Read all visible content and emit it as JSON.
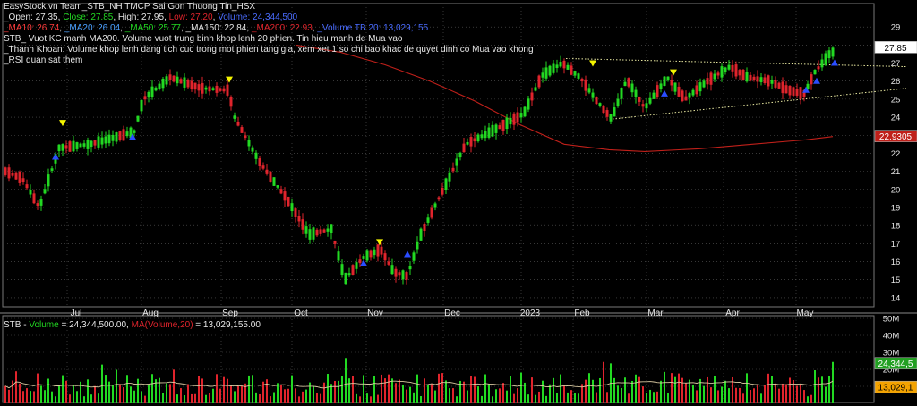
{
  "header": {
    "title": "EasyStock.vn Team_STB_NH TMCP Sai Gon Thuong Tin_HSX",
    "ohlc": {
      "open_label": "_Open: ",
      "open": "27.35",
      "close_label": "Close: ",
      "close": "27.85",
      "high_label": "High: ",
      "high": "27.95",
      "low_label": "Low: ",
      "low": "27.20",
      "volume_label": "Volume: ",
      "volume": "24,344,500"
    },
    "ma": {
      "ma10_label": "_MA10: ",
      "ma10": "26.74",
      "ma20_label": "_MA20: ",
      "ma20": "26.04",
      "ma50_label": "_MA50: ",
      "ma50": "25.77",
      "ma150_label": "_MA150: ",
      "ma150": "22.84",
      "ma200_label": "_MA200: ",
      "ma200": "22.93",
      "vtb_label": "_Volume TB 20: ",
      "vtb": "13,029,155"
    },
    "note1": "STB_ Vuot KC manh MA200. Volume vuot trung binh khop lenh 20 phien. Tin hieu manh de Mua vao",
    "note2": "_Thanh Khoan: Volume khop lenh dang tich cuc trong mot phien tang gia, xem xet 1 so chi bao khac de quyet dinh co Mua vao khong",
    "note3": "_RSI quan sat them"
  },
  "volume_header": {
    "symbol": "STB - ",
    "vol_label": "Volume",
    "vol_value": " = 24,344,500.00, ",
    "ma_label": "MA(Volume,20)",
    "ma_value": " = 13,029,155.00"
  },
  "price_badges": {
    "last": "27.85",
    "ma200": "22.9305"
  },
  "volume_badges": {
    "last": "24,344,5",
    "ma": "13,029,1"
  },
  "colors": {
    "up": "#22d922",
    "down": "#e0242c",
    "ma200": "#c0201a",
    "bg": "#000000",
    "grid": "#5a5a5a",
    "trend": "#e8e8a0"
  },
  "chart_data": [
    {
      "type": "candlestick",
      "title": "EasyStock.vn Team_STB_NH TMCP Sai Gon Thuong Tin_HSX",
      "x_tick_labels": [
        "Jul",
        "Aug",
        "Sep",
        "Oct",
        "Nov",
        "Dec",
        "2023",
        "Feb",
        "Mar",
        "Apr",
        "May"
      ],
      "y_ticks": [
        14,
        15,
        16,
        17,
        18,
        19,
        20,
        21,
        22,
        23,
        24,
        25,
        26,
        27,
        28,
        29
      ],
      "ylim": [
        13.5,
        29.8
      ],
      "grid": true,
      "price_anchors": [
        [
          "Jun",
          21.0
        ],
        [
          "Jul",
          22.3
        ],
        [
          "Aug",
          25.0
        ],
        [
          "Aug",
          26.2
        ],
        [
          "Sep",
          25.5
        ],
        [
          "Sep",
          22.5
        ],
        [
          "Oct",
          18.5
        ],
        [
          "Oct",
          16.0
        ],
        [
          "Nov",
          16.5
        ],
        [
          "Nov",
          15.2
        ],
        [
          "Dec",
          19.0
        ],
        [
          "Dec",
          23.0
        ],
        [
          "2023",
          24.0
        ],
        [
          "2023",
          27.0
        ],
        [
          "Feb",
          25.5
        ],
        [
          "Feb",
          24.0
        ],
        [
          "Mar",
          26.0
        ],
        [
          "Mar",
          25.2
        ],
        [
          "Apr",
          26.5
        ],
        [
          "Apr",
          25.8
        ],
        [
          "May",
          26.0
        ],
        [
          "May",
          27.85
        ]
      ],
      "last": {
        "open": 27.35,
        "high": 27.95,
        "low": 27.2,
        "close": 27.85
      },
      "ma200_level": 22.93
    },
    {
      "type": "bar",
      "title": "STB - Volume",
      "y_tick_labels": [
        "50M",
        "40M",
        "30M",
        "20M",
        "10M"
      ],
      "last_volume": 24344500,
      "ma20_volume": 13029155
    }
  ]
}
